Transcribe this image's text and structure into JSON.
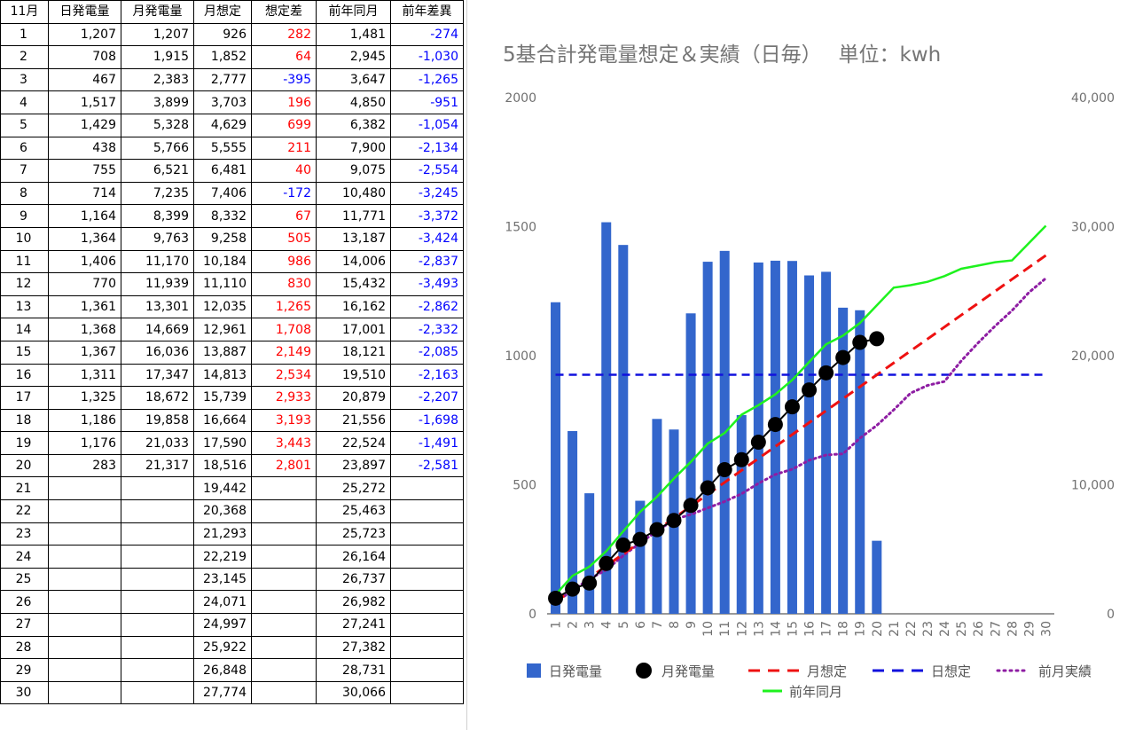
{
  "sheet": {
    "headers": [
      "11月",
      "日発電量",
      "月発電量",
      "月想定",
      "想定差",
      "前年同月",
      "前年差異"
    ],
    "rows": [
      [
        "1",
        "1,207",
        "1,207",
        "926",
        "282",
        "1,481",
        "-274"
      ],
      [
        "2",
        "708",
        "1,915",
        "1,852",
        "64",
        "2,945",
        "-1,030"
      ],
      [
        "3",
        "467",
        "2,383",
        "2,777",
        "-395",
        "3,647",
        "-1,265"
      ],
      [
        "4",
        "1,517",
        "3,899",
        "3,703",
        "196",
        "4,850",
        "-951"
      ],
      [
        "5",
        "1,429",
        "5,328",
        "4,629",
        "699",
        "6,382",
        "-1,054"
      ],
      [
        "6",
        "438",
        "5,766",
        "5,555",
        "211",
        "7,900",
        "-2,134"
      ],
      [
        "7",
        "755",
        "6,521",
        "6,481",
        "40",
        "9,075",
        "-2,554"
      ],
      [
        "8",
        "714",
        "7,235",
        "7,406",
        "-172",
        "10,480",
        "-3,245"
      ],
      [
        "9",
        "1,164",
        "8,399",
        "8,332",
        "67",
        "11,771",
        "-3,372"
      ],
      [
        "10",
        "1,364",
        "9,763",
        "9,258",
        "505",
        "13,187",
        "-3,424"
      ],
      [
        "11",
        "1,406",
        "11,170",
        "10,184",
        "986",
        "14,006",
        "-2,837"
      ],
      [
        "12",
        "770",
        "11,939",
        "11,110",
        "830",
        "15,432",
        "-3,493"
      ],
      [
        "13",
        "1,361",
        "13,301",
        "12,035",
        "1,265",
        "16,162",
        "-2,862"
      ],
      [
        "14",
        "1,368",
        "14,669",
        "12,961",
        "1,708",
        "17,001",
        "-2,332"
      ],
      [
        "15",
        "1,367",
        "16,036",
        "13,887",
        "2,149",
        "18,121",
        "-2,085"
      ],
      [
        "16",
        "1,311",
        "17,347",
        "14,813",
        "2,534",
        "19,510",
        "-2,163"
      ],
      [
        "17",
        "1,325",
        "18,672",
        "15,739",
        "2,933",
        "20,879",
        "-2,207"
      ],
      [
        "18",
        "1,186",
        "19,858",
        "16,664",
        "3,193",
        "21,556",
        "-1,698"
      ],
      [
        "19",
        "1,176",
        "21,033",
        "17,590",
        "3,443",
        "22,524",
        "-1,491"
      ],
      [
        "20",
        "283",
        "21,317",
        "18,516",
        "2,801",
        "23,897",
        "-2,581"
      ],
      [
        "21",
        "",
        "",
        "19,442",
        "",
        "25,272",
        ""
      ],
      [
        "22",
        "",
        "",
        "20,368",
        "",
        "25,463",
        ""
      ],
      [
        "23",
        "",
        "",
        "21,293",
        "",
        "25,723",
        ""
      ],
      [
        "24",
        "",
        "",
        "22,219",
        "",
        "26,164",
        ""
      ],
      [
        "25",
        "",
        "",
        "23,145",
        "",
        "26,737",
        ""
      ],
      [
        "26",
        "",
        "",
        "24,071",
        "",
        "26,982",
        ""
      ],
      [
        "27",
        "",
        "",
        "24,997",
        "",
        "27,241",
        ""
      ],
      [
        "28",
        "",
        "",
        "25,922",
        "",
        "27,382",
        ""
      ],
      [
        "29",
        "",
        "",
        "26,848",
        "",
        "28,731",
        ""
      ],
      [
        "30",
        "",
        "",
        "27,774",
        "",
        "30,066",
        ""
      ]
    ]
  },
  "colors": {
    "positive_diff": "#ff0000",
    "negative_diff": "#0000ff",
    "bar": "#3366cc",
    "monthly_actual": "#000000",
    "monthly_forecast": "#ee1111",
    "daily_forecast": "#1111dd",
    "prev_month": "#8e1da3",
    "prev_year": "#1ef21e"
  },
  "chart_data": {
    "type": "bar",
    "title": "5基合計発電量想定＆実績（日毎）　 単位：kwh",
    "categories": [
      "1",
      "2",
      "3",
      "4",
      "5",
      "6",
      "7",
      "8",
      "9",
      "10",
      "11",
      "12",
      "13",
      "14",
      "15",
      "16",
      "17",
      "18",
      "19",
      "20",
      "21",
      "22",
      "23",
      "24",
      "25",
      "26",
      "27",
      "28",
      "29",
      "30"
    ],
    "y_left": {
      "min": 0,
      "max": 2000,
      "ticks": [
        "0",
        "500",
        "1000",
        "1500",
        "2000"
      ]
    },
    "y_right": {
      "min": 0,
      "max": 40000,
      "ticks": [
        "0",
        "10,000",
        "20,000",
        "30,000",
        "40,000"
      ]
    },
    "grid": false,
    "legend_position": "bottom",
    "series": [
      {
        "name": "日発電量",
        "kind": "bar",
        "axis": "left",
        "values": [
          1207,
          708,
          467,
          1517,
          1429,
          438,
          755,
          714,
          1164,
          1364,
          1406,
          770,
          1361,
          1368,
          1367,
          1311,
          1325,
          1186,
          1176,
          283,
          null,
          null,
          null,
          null,
          null,
          null,
          null,
          null,
          null,
          null
        ]
      },
      {
        "name": "月発電量",
        "kind": "line-dots",
        "axis": "right",
        "values": [
          1207,
          1915,
          2383,
          3899,
          5328,
          5766,
          6521,
          7235,
          8399,
          9763,
          11170,
          11939,
          13301,
          14669,
          16036,
          17347,
          18672,
          19858,
          21033,
          21317,
          null,
          null,
          null,
          null,
          null,
          null,
          null,
          null,
          null,
          null
        ]
      },
      {
        "name": "月想定",
        "kind": "dashed",
        "axis": "right",
        "values": [
          926,
          1852,
          2777,
          3703,
          4629,
          5555,
          6481,
          7406,
          8332,
          9258,
          10184,
          11110,
          12035,
          12961,
          13887,
          14813,
          15739,
          16664,
          17590,
          18516,
          19442,
          20368,
          21293,
          22219,
          23145,
          24071,
          24997,
          25922,
          26848,
          27774
        ]
      },
      {
        "name": "日想定",
        "kind": "dashed",
        "axis": "left",
        "values": [
          926,
          926,
          926,
          926,
          926,
          926,
          926,
          926,
          926,
          926,
          926,
          926,
          926,
          926,
          926,
          926,
          926,
          926,
          926,
          926,
          926,
          926,
          926,
          926,
          926,
          926,
          926,
          926,
          926,
          926
        ]
      },
      {
        "name": "前月実績",
        "kind": "dotted",
        "axis": "right",
        "values": [
          900,
          1800,
          2700,
          3400,
          4500,
          5500,
          6400,
          7300,
          7700,
          8200,
          8700,
          9300,
          10100,
          10800,
          11200,
          11900,
          12300,
          12400,
          13600,
          14600,
          15800,
          17100,
          17700,
          18000,
          19600,
          21000,
          22300,
          23500,
          24900,
          26000
        ]
      },
      {
        "name": "前年同月",
        "kind": "solid",
        "axis": "right",
        "values": [
          1481,
          2945,
          3647,
          4850,
          6382,
          7900,
          9075,
          10480,
          11771,
          13187,
          14006,
          15432,
          16162,
          17001,
          18121,
          19510,
          20879,
          21556,
          22524,
          23897,
          25272,
          25463,
          25723,
          26164,
          26737,
          26982,
          27241,
          27382,
          28731,
          30066
        ]
      }
    ]
  }
}
